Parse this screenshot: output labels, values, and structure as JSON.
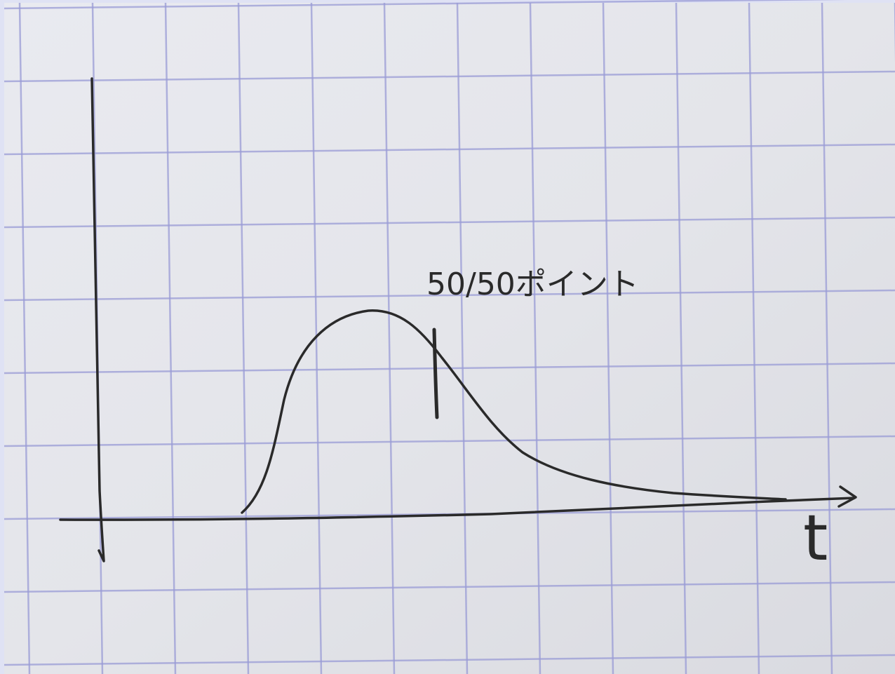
{
  "annotation": "50/50ポイント",
  "x_label": "t"
}
